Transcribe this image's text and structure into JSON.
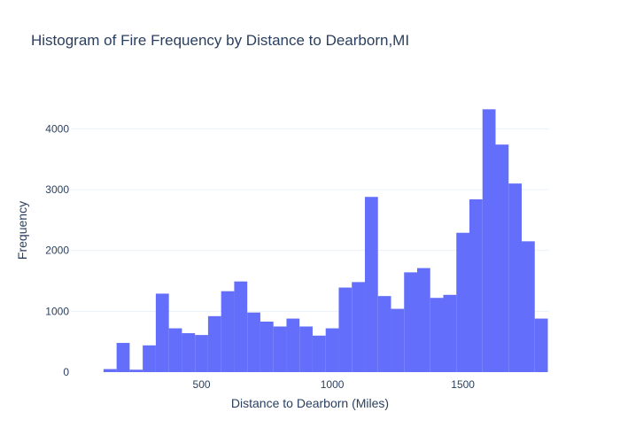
{
  "chart_data": {
    "type": "bar",
    "title": "Histogram of Fire Frequency by Distance to Dearborn,MI",
    "xlabel": "Distance to Dearborn (Miles)",
    "ylabel": "Frequency",
    "bar_color": "#636efa",
    "grid_color": "#ebf0f8",
    "text_color": "#2a3f5f",
    "grid": true,
    "xlim": [
      0,
      1830
    ],
    "ylim": [
      0,
      4660
    ],
    "xticks": [
      500,
      1000,
      1500
    ],
    "yticks": [
      0,
      1000,
      2000,
      3000,
      4000
    ],
    "bin_width": 50,
    "bin_start": 125,
    "values": [
      50,
      480,
      40,
      440,
      1290,
      720,
      640,
      610,
      920,
      1330,
      1490,
      980,
      830,
      750,
      880,
      750,
      600,
      720,
      1390,
      1480,
      2880,
      1250,
      1040,
      1640,
      1710,
      1220,
      1270,
      2290,
      2840,
      4320,
      3740,
      3100,
      2150,
      880
    ]
  }
}
